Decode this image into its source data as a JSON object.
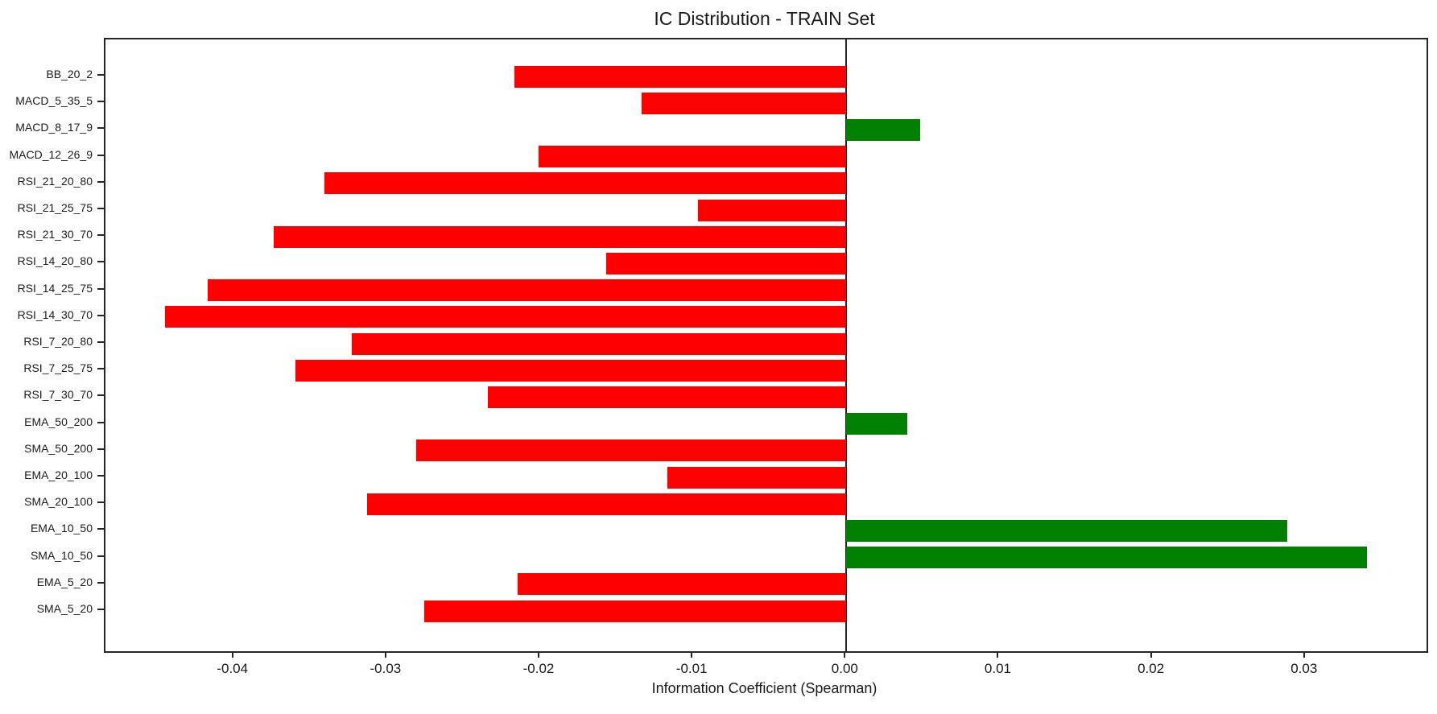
{
  "chart_data": {
    "type": "bar",
    "orientation": "horizontal",
    "title": "IC Distribution - TRAIN Set",
    "xlabel": "Information Coefficient (Spearman)",
    "ylabel": "",
    "categories": [
      "BB_20_2",
      "MACD_5_35_5",
      "MACD_8_17_9",
      "MACD_12_26_9",
      "RSI_21_20_80",
      "RSI_21_25_75",
      "RSI_21_30_70",
      "RSI_14_20_80",
      "RSI_14_25_75",
      "RSI_14_30_70",
      "RSI_7_20_80",
      "RSI_7_25_75",
      "RSI_7_30_70",
      "EMA_50_200",
      "SMA_50_200",
      "EMA_20_100",
      "SMA_20_100",
      "EMA_10_50",
      "SMA_10_50",
      "EMA_5_20",
      "SMA_5_20"
    ],
    "values": [
      -0.0217,
      -0.0134,
      0.0048,
      -0.0201,
      -0.0341,
      -0.0097,
      -0.0374,
      -0.0157,
      -0.0417,
      -0.0445,
      -0.0323,
      -0.036,
      -0.0234,
      0.004,
      -0.0281,
      -0.0117,
      -0.0313,
      0.0288,
      0.034,
      -0.0215,
      -0.0276
    ],
    "xlim": [
      -0.0484,
      0.0379
    ],
    "xticks": [
      -0.04,
      -0.03,
      -0.02,
      -0.01,
      0.0,
      0.01,
      0.02,
      0.03
    ],
    "xtick_labels": [
      "-0.04",
      "-0.03",
      "-0.02",
      "-0.01",
      "0.00",
      "0.01",
      "0.02",
      "0.03"
    ],
    "grid": false,
    "legend": null,
    "colors": {
      "positive_bar": "#008000",
      "negative_bar": "#ff0000",
      "axis": "#262626",
      "text": "#1a1a1a",
      "background": "#ffffff"
    }
  }
}
